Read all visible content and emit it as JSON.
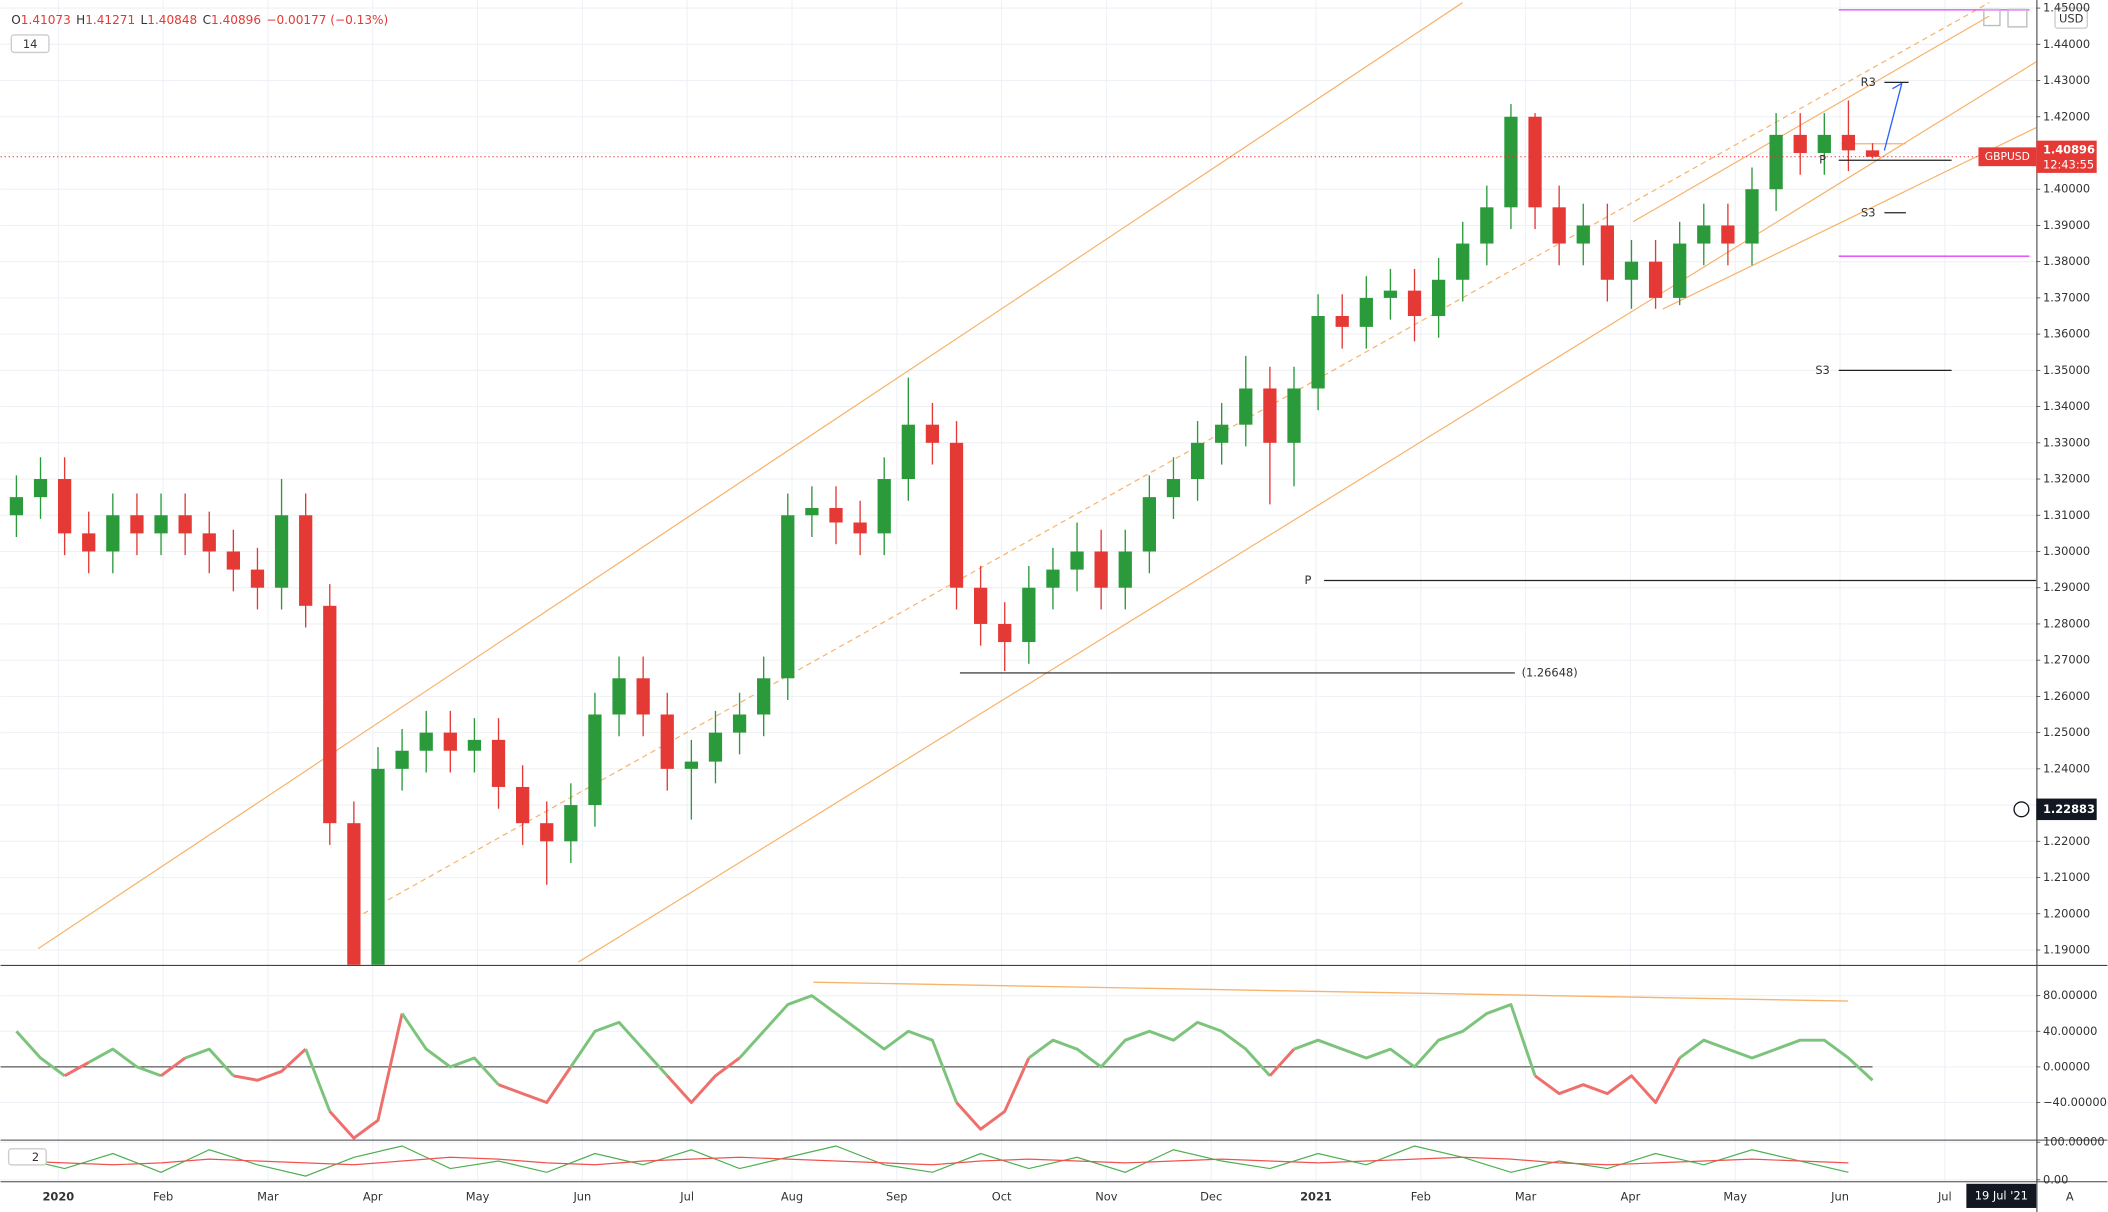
{
  "header": {
    "ohlc_labels": [
      "O",
      "H",
      "L",
      "C"
    ],
    "change": "−0.00177 (−0.13%)",
    "interval": "14",
    "currency": "USD",
    "scale_mode": "A"
  },
  "chart_data": [
    {
      "type": "candlestick",
      "symbol": "GBPUSD",
      "countdown": "12:43:55",
      "up_color": "#2a9a3a",
      "down_color": "#e53935",
      "x": [
        -0.4,
        -0.17,
        0.06,
        0.29,
        0.52,
        0.75,
        0.98,
        1.21,
        1.44,
        1.67,
        1.9,
        2.13,
        2.36,
        2.59,
        2.82,
        3.05,
        3.28,
        3.51,
        3.74,
        3.97,
        4.2,
        4.43,
        4.66,
        4.89,
        5.12,
        5.35,
        5.58,
        5.81,
        6.04,
        6.27,
        6.5,
        6.73,
        6.96,
        7.19,
        7.42,
        7.65,
        7.88,
        8.11,
        8.34,
        8.57,
        8.8,
        9.03,
        9.26,
        9.49,
        9.72,
        9.95,
        10.18,
        10.41,
        10.64,
        10.87,
        11.1,
        11.33,
        11.56,
        11.79,
        12.02,
        12.25,
        12.48,
        12.71,
        12.94,
        13.17,
        13.4,
        13.63,
        13.86,
        14.09,
        14.32,
        14.55,
        14.78,
        15.01,
        15.24,
        15.47,
        15.7,
        15.93,
        16.16,
        16.39,
        16.62,
        16.85,
        17.08,
        17.31
      ],
      "open": [
        1.31,
        1.315,
        1.32,
        1.305,
        1.3,
        1.31,
        1.305,
        1.31,
        1.305,
        1.3,
        1.295,
        1.29,
        1.31,
        1.285,
        1.225,
        1.16,
        1.24,
        1.245,
        1.25,
        1.245,
        1.248,
        1.235,
        1.225,
        1.22,
        1.23,
        1.255,
        1.265,
        1.255,
        1.24,
        1.242,
        1.25,
        1.255,
        1.265,
        1.31,
        1.312,
        1.308,
        1.305,
        1.32,
        1.335,
        1.33,
        1.29,
        1.28,
        1.275,
        1.29,
        1.295,
        1.3,
        1.29,
        1.3,
        1.315,
        1.32,
        1.33,
        1.335,
        1.345,
        1.33,
        1.345,
        1.365,
        1.362,
        1.37,
        1.372,
        1.365,
        1.375,
        1.385,
        1.395,
        1.42,
        1.395,
        1.385,
        1.39,
        1.375,
        1.38,
        1.37,
        1.385,
        1.39,
        1.385,
        1.4,
        1.415,
        1.41,
        1.415,
        1.41073
      ],
      "high": [
        1.321,
        1.326,
        1.326,
        1.311,
        1.316,
        1.316,
        1.316,
        1.316,
        1.311,
        1.306,
        1.301,
        1.32,
        1.316,
        1.291,
        1.231,
        1.246,
        1.251,
        1.256,
        1.256,
        1.254,
        1.254,
        1.241,
        1.231,
        1.236,
        1.261,
        1.271,
        1.271,
        1.261,
        1.248,
        1.256,
        1.261,
        1.271,
        1.316,
        1.318,
        1.318,
        1.314,
        1.326,
        1.348,
        1.341,
        1.336,
        1.296,
        1.286,
        1.296,
        1.301,
        1.308,
        1.306,
        1.306,
        1.321,
        1.326,
        1.336,
        1.341,
        1.354,
        1.351,
        1.351,
        1.371,
        1.371,
        1.376,
        1.378,
        1.378,
        1.381,
        1.391,
        1.401,
        1.4235,
        1.421,
        1.401,
        1.396,
        1.396,
        1.386,
        1.386,
        1.391,
        1.396,
        1.396,
        1.406,
        1.421,
        1.421,
        1.421,
        1.4245,
        1.41271
      ],
      "low": [
        1.304,
        1.309,
        1.299,
        1.294,
        1.294,
        1.299,
        1.299,
        1.299,
        1.294,
        1.289,
        1.284,
        1.284,
        1.279,
        1.219,
        1.145,
        1.154,
        1.234,
        1.239,
        1.239,
        1.239,
        1.229,
        1.219,
        1.208,
        1.214,
        1.224,
        1.249,
        1.249,
        1.234,
        1.226,
        1.236,
        1.244,
        1.249,
        1.259,
        1.304,
        1.302,
        1.299,
        1.299,
        1.314,
        1.324,
        1.284,
        1.274,
        1.267,
        1.269,
        1.284,
        1.289,
        1.284,
        1.284,
        1.294,
        1.309,
        1.314,
        1.324,
        1.329,
        1.313,
        1.318,
        1.339,
        1.356,
        1.356,
        1.364,
        1.358,
        1.359,
        1.369,
        1.379,
        1.389,
        1.389,
        1.379,
        1.379,
        1.369,
        1.367,
        1.367,
        1.368,
        1.379,
        1.379,
        1.379,
        1.394,
        1.404,
        1.404,
        1.405,
        1.40848
      ],
      "close": [
        1.315,
        1.32,
        1.305,
        1.3,
        1.31,
        1.305,
        1.31,
        1.305,
        1.3,
        1.295,
        1.29,
        1.31,
        1.285,
        1.225,
        1.16,
        1.24,
        1.245,
        1.25,
        1.245,
        1.248,
        1.235,
        1.225,
        1.22,
        1.23,
        1.255,
        1.265,
        1.255,
        1.24,
        1.242,
        1.25,
        1.255,
        1.265,
        1.31,
        1.312,
        1.308,
        1.305,
        1.32,
        1.335,
        1.33,
        1.29,
        1.28,
        1.275,
        1.29,
        1.295,
        1.3,
        1.29,
        1.3,
        1.315,
        1.32,
        1.33,
        1.335,
        1.345,
        1.33,
        1.345,
        1.365,
        1.362,
        1.37,
        1.372,
        1.365,
        1.375,
        1.385,
        1.395,
        1.42,
        1.395,
        1.385,
        1.39,
        1.375,
        1.38,
        1.37,
        1.385,
        1.39,
        1.385,
        1.4,
        1.415,
        1.41,
        1.415,
        1.41073,
        1.40896
      ],
      "xlim": [
        -0.5513,
        18.872
      ],
      "ylim": [
        1.18592,
        1.45223
      ],
      "xticks": [
        {
          "value": 0,
          "label": "2020"
        },
        {
          "value": 1,
          "label": "Feb"
        },
        {
          "value": 2,
          "label": "Mar"
        },
        {
          "value": 3,
          "label": "Apr"
        },
        {
          "value": 4,
          "label": "May"
        },
        {
          "value": 5,
          "label": "Jun"
        },
        {
          "value": 6,
          "label": "Jul"
        },
        {
          "value": 7,
          "label": "Aug"
        },
        {
          "value": 8,
          "label": "Sep"
        },
        {
          "value": 9,
          "label": "Oct"
        },
        {
          "value": 10,
          "label": "Nov"
        },
        {
          "value": 11,
          "label": "Dec"
        },
        {
          "value": 12,
          "label": "2021"
        },
        {
          "value": 13,
          "label": "Feb"
        },
        {
          "value": 14,
          "label": "Mar"
        },
        {
          "value": 15,
          "label": "Apr"
        },
        {
          "value": 16,
          "label": "May"
        },
        {
          "value": 17,
          "label": "Jun"
        },
        {
          "value": 18,
          "label": "Jul"
        }
      ],
      "yticks": [
        {
          "value": 1.19,
          "label": "1.19000"
        },
        {
          "value": 1.2,
          "label": "1.20000"
        },
        {
          "value": 1.21,
          "label": "1.21000"
        },
        {
          "value": 1.22,
          "label": "1.22000"
        },
        {
          "value": 1.23,
          "label": "1.23000"
        },
        {
          "value": 1.24,
          "label": "1.24000"
        },
        {
          "value": 1.25,
          "label": "1.25000"
        },
        {
          "value": 1.26,
          "label": "1.26000"
        },
        {
          "value": 1.27,
          "label": "1.27000"
        },
        {
          "value": 1.28,
          "label": "1.28000"
        },
        {
          "value": 1.29,
          "label": "1.29000"
        },
        {
          "value": 1.3,
          "label": "1.30000"
        },
        {
          "value": 1.31,
          "label": "1.31000"
        },
        {
          "value": 1.32,
          "label": "1.32000"
        },
        {
          "value": 1.33,
          "label": "1.33000"
        },
        {
          "value": 1.34,
          "label": "1.34000"
        },
        {
          "value": 1.35,
          "label": "1.35000"
        },
        {
          "value": 1.36,
          "label": "1.36000"
        },
        {
          "value": 1.37,
          "label": "1.37000"
        },
        {
          "value": 1.38,
          "label": "1.38000"
        },
        {
          "value": 1.39,
          "label": "1.39000"
        },
        {
          "value": 1.4,
          "label": "1.40000"
        },
        {
          "value": 1.41,
          "label": "1.41000"
        },
        {
          "value": 1.42,
          "label": "1.42000"
        },
        {
          "value": 1.43,
          "label": "1.43000"
        },
        {
          "value": 1.44,
          "label": "1.44000"
        },
        {
          "value": 1.45,
          "label": "1.45000"
        }
      ],
      "levels": [
        {
          "label": "(1.26648)",
          "value": 1.26648
        },
        {
          "label": "P",
          "value": 1.292
        },
        {
          "label": "S3",
          "value": 1.35
        },
        {
          "label": "R3",
          "value": 1.4295
        },
        {
          "label": "P",
          "value": 1.408
        },
        {
          "label": "S3",
          "value": 1.3935
        }
      ],
      "bands": [
        1.4495,
        1.3815
      ],
      "band_color": "#e040fb",
      "crosshair_price": 1.22883,
      "crosshair_date": "19 Jul '21"
    },
    {
      "type": "oscillator",
      "color_positive": "#7cc47c",
      "color_negative": "#ef6f6c",
      "x": [
        -0.4,
        -0.17,
        0.06,
        0.29,
        0.52,
        0.75,
        0.98,
        1.21,
        1.44,
        1.67,
        1.9,
        2.13,
        2.36,
        2.59,
        2.82,
        3.05,
        3.28,
        3.51,
        3.74,
        3.97,
        4.2,
        4.43,
        4.66,
        4.89,
        5.12,
        5.35,
        5.58,
        5.81,
        6.04,
        6.27,
        6.5,
        6.73,
        6.96,
        7.19,
        7.42,
        7.65,
        7.88,
        8.11,
        8.34,
        8.57,
        8.8,
        9.03,
        9.26,
        9.49,
        9.72,
        9.95,
        10.18,
        10.41,
        10.64,
        10.87,
        11.1,
        11.33,
        11.56,
        11.79,
        12.02,
        12.25,
        12.48,
        12.71,
        12.94,
        13.17,
        13.4,
        13.63,
        13.86,
        14.09,
        14.32,
        14.55,
        14.78,
        15.01,
        15.24,
        15.47,
        15.7,
        15.93,
        16.16,
        16.39,
        16.62,
        16.85,
        17.08,
        17.31
      ],
      "values": [
        40,
        10,
        -10,
        5,
        20,
        0,
        -10,
        10,
        20,
        -10,
        -15,
        -5,
        20,
        -50,
        -80,
        -60,
        60,
        20,
        0,
        10,
        -20,
        -30,
        -40,
        0,
        40,
        50,
        20,
        -10,
        -40,
        -10,
        10,
        40,
        70,
        80,
        60,
        40,
        20,
        40,
        30,
        -40,
        -70,
        -50,
        10,
        30,
        20,
        0,
        30,
        40,
        30,
        50,
        40,
        20,
        -10,
        20,
        30,
        20,
        10,
        20,
        0,
        30,
        40,
        60,
        70,
        -10,
        -30,
        -20,
        -30,
        -10,
        -40,
        10,
        30,
        20,
        10,
        20,
        30,
        30,
        10,
        -15
      ],
      "xlim": [
        -0.5513,
        18.872
      ],
      "ylim": [
        -81.5,
        113.2
      ],
      "yticks": [
        {
          "value": 80,
          "label": "80.00000"
        },
        {
          "value": 40,
          "label": "40.00000"
        },
        {
          "value": 0,
          "label": "0.00000"
        },
        {
          "value": -40,
          "label": "−40.00000"
        }
      ]
    },
    {
      "type": "line",
      "indicator_label": "2",
      "x": [
        -0.4,
        0.06,
        0.52,
        0.98,
        1.44,
        1.9,
        2.36,
        2.82,
        3.28,
        3.74,
        4.2,
        4.66,
        5.12,
        5.58,
        6.04,
        6.5,
        6.96,
        7.42,
        7.88,
        8.34,
        8.8,
        9.26,
        9.72,
        10.18,
        10.64,
        11.1,
        11.56,
        12.02,
        12.48,
        12.94,
        13.4,
        13.86,
        14.32,
        14.78,
        15.24,
        15.7,
        16.16,
        16.62,
        17.08
      ],
      "series": [
        {
          "color": "#4caf50",
          "values": [
            60,
            30,
            70,
            20,
            80,
            40,
            10,
            60,
            90,
            30,
            50,
            20,
            70,
            40,
            80,
            30,
            60,
            90,
            40,
            20,
            70,
            30,
            60,
            20,
            80,
            50,
            30,
            70,
            40,
            90,
            60,
            20,
            50,
            30,
            70,
            40,
            80,
            50,
            20
          ]
        },
        {
          "color": "#ef5350",
          "values": [
            50,
            45,
            40,
            45,
            55,
            50,
            45,
            40,
            50,
            60,
            55,
            45,
            40,
            50,
            55,
            60,
            55,
            50,
            45,
            40,
            50,
            55,
            50,
            45,
            50,
            55,
            50,
            45,
            50,
            55,
            60,
            55,
            45,
            40,
            45,
            50,
            55,
            50,
            45
          ]
        }
      ],
      "xlim": [
        -0.5513,
        18.872
      ],
      "ylim": [
        -3.4,
        100.3
      ],
      "yticks": [
        {
          "value": 100,
          "label": "100.00000"
        },
        {
          "value": 0,
          "label": "0.00"
        }
      ]
    }
  ]
}
